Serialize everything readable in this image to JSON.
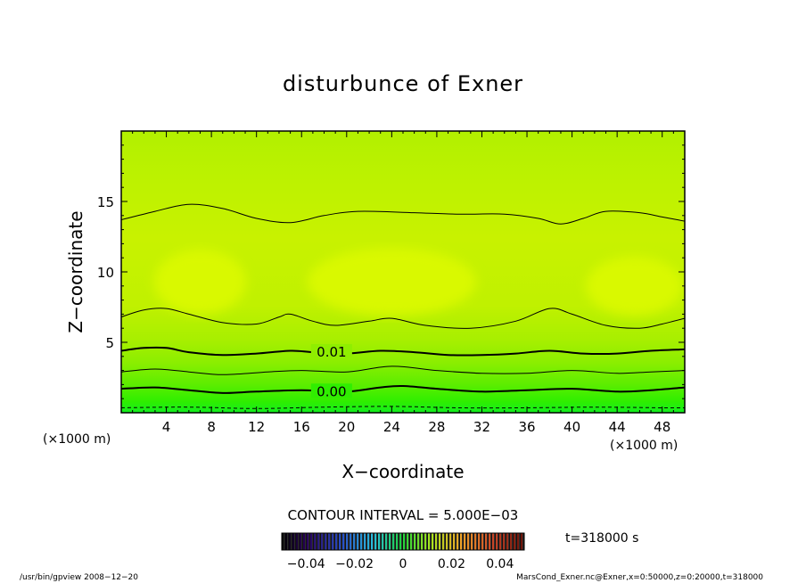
{
  "chart_data": {
    "type": "heatmap",
    "title": "disturbunce of Exner",
    "xlabel": "X−coordinate",
    "ylabel": "Z−coordinate",
    "x_unit": "(×1000 m)",
    "y_unit": "(×1000 m)",
    "xlim": [
      0,
      50
    ],
    "ylim": [
      0,
      20
    ],
    "x_ticks": [
      4,
      8,
      12,
      16,
      20,
      24,
      28,
      32,
      36,
      40,
      44,
      48
    ],
    "y_ticks": [
      5,
      10,
      15
    ],
    "contour_interval_label": "CONTOUR INTERVAL = 5.000E−03",
    "contour_labels": [
      {
        "text": "0.01",
        "x": 17.0,
        "z": 4.3
      },
      {
        "text": "0.00",
        "x": 17.0,
        "z": 1.5
      }
    ],
    "contours": [
      {
        "level": "thin",
        "points": [
          [
            0,
            13.7
          ],
          [
            3,
            14.3
          ],
          [
            6,
            14.8
          ],
          [
            9,
            14.5
          ],
          [
            12,
            13.8
          ],
          [
            15,
            13.5
          ],
          [
            18,
            14.0
          ],
          [
            21,
            14.3
          ],
          [
            26,
            14.2
          ],
          [
            30,
            14.1
          ],
          [
            34,
            14.1
          ],
          [
            37,
            13.8
          ],
          [
            39,
            13.4
          ],
          [
            41,
            13.8
          ],
          [
            43,
            14.3
          ],
          [
            46,
            14.2
          ],
          [
            48,
            13.9
          ],
          [
            50,
            13.6
          ]
        ]
      },
      {
        "level": "thin",
        "points": [
          [
            0,
            6.8
          ],
          [
            2,
            7.3
          ],
          [
            4,
            7.4
          ],
          [
            6,
            7.0
          ],
          [
            9,
            6.4
          ],
          [
            12,
            6.3
          ],
          [
            14,
            6.8
          ],
          [
            15,
            7.0
          ],
          [
            17,
            6.5
          ],
          [
            19,
            6.2
          ],
          [
            22,
            6.5
          ],
          [
            24,
            6.7
          ],
          [
            27,
            6.2
          ],
          [
            31,
            6.0
          ],
          [
            35,
            6.5
          ],
          [
            38,
            7.4
          ],
          [
            40,
            7.0
          ],
          [
            43,
            6.2
          ],
          [
            46,
            6.0
          ],
          [
            48,
            6.3
          ],
          [
            50,
            6.7
          ]
        ]
      },
      {
        "level": "0.01",
        "points": [
          [
            0,
            4.4
          ],
          [
            2,
            4.6
          ],
          [
            4,
            4.6
          ],
          [
            6,
            4.3
          ],
          [
            9,
            4.1
          ],
          [
            12,
            4.2
          ],
          [
            15,
            4.4
          ],
          [
            17,
            4.3
          ],
          [
            20,
            4.2
          ],
          [
            23,
            4.4
          ],
          [
            26,
            4.3
          ],
          [
            29,
            4.1
          ],
          [
            32,
            4.1
          ],
          [
            35,
            4.2
          ],
          [
            38,
            4.4
          ],
          [
            41,
            4.2
          ],
          [
            44,
            4.2
          ],
          [
            47,
            4.4
          ],
          [
            50,
            4.5
          ]
        ]
      },
      {
        "level": "thin",
        "points": [
          [
            0,
            2.9
          ],
          [
            3,
            3.1
          ],
          [
            6,
            2.9
          ],
          [
            9,
            2.7
          ],
          [
            13,
            2.9
          ],
          [
            16,
            3.0
          ],
          [
            20,
            2.9
          ],
          [
            24,
            3.3
          ],
          [
            28,
            3.0
          ],
          [
            32,
            2.8
          ],
          [
            36,
            2.8
          ],
          [
            40,
            3.0
          ],
          [
            44,
            2.8
          ],
          [
            47,
            2.9
          ],
          [
            50,
            3.0
          ]
        ]
      },
      {
        "level": "0.00",
        "points": [
          [
            0,
            1.7
          ],
          [
            3,
            1.8
          ],
          [
            6,
            1.6
          ],
          [
            9,
            1.4
          ],
          [
            12,
            1.5
          ],
          [
            16,
            1.6
          ],
          [
            20,
            1.5
          ],
          [
            23,
            1.8
          ],
          [
            25,
            1.9
          ],
          [
            28,
            1.7
          ],
          [
            32,
            1.5
          ],
          [
            36,
            1.6
          ],
          [
            40,
            1.7
          ],
          [
            44,
            1.5
          ],
          [
            47,
            1.6
          ],
          [
            50,
            1.8
          ]
        ]
      },
      {
        "level": "dashed",
        "points": [
          [
            0,
            0.35
          ],
          [
            6,
            0.4
          ],
          [
            12,
            0.3
          ],
          [
            18,
            0.4
          ],
          [
            24,
            0.45
          ],
          [
            30,
            0.35
          ],
          [
            36,
            0.35
          ],
          [
            42,
            0.4
          ],
          [
            48,
            0.35
          ],
          [
            50,
            0.35
          ]
        ]
      }
    ],
    "blobs": [
      {
        "x": 7.0,
        "z": 9.3,
        "rx": 4.1,
        "rz": 2.3
      },
      {
        "x": 24.0,
        "z": 9.3,
        "rx": 7.5,
        "rz": 2.4
      },
      {
        "x": 45.5,
        "z": 9.0,
        "rx": 4.3,
        "rz": 2.1
      }
    ],
    "colorbar": {
      "tick_labels": [
        "−0.04",
        "−0.02",
        "0",
        "0.02",
        "0.04"
      ],
      "range": [
        -0.05,
        0.05
      ]
    },
    "time_label": "t=318000 s",
    "footer_left": "/usr/bin/gpview   2008−12−20",
    "footer_right": "MarsCond_Exner.nc@Exner,x=0:50000,z=0:20000,t=318000",
    "colors": {
      "fill_top": "#b2f000",
      "fill_mid": "#d0f200",
      "fill_mid_edge": "#c4f000",
      "fill_low1": "#a8ef00",
      "fill_low2": "#8cee00",
      "fill_low3": "#5ced00",
      "fill_low4": "#2fee00",
      "fill_bottom": "#12ee20",
      "blob": "#ddfa00"
    }
  }
}
